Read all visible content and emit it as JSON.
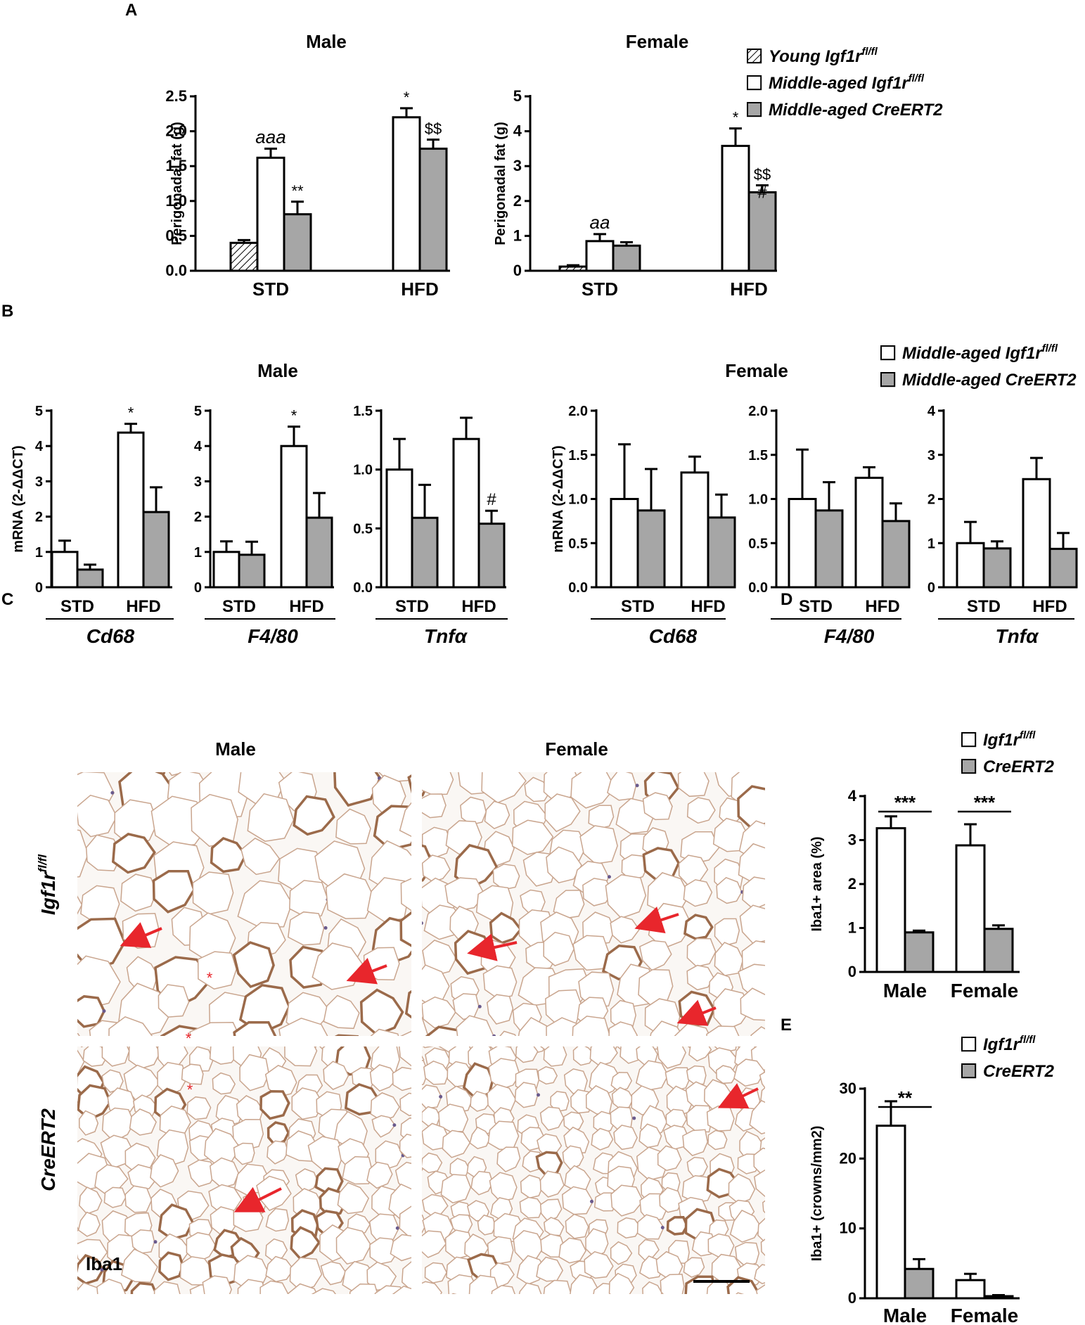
{
  "panel_labels": {
    "a": "A",
    "b": "B",
    "c": "C",
    "d": "D",
    "e": "E"
  },
  "colors": {
    "white_bar": "#ffffff",
    "gray_bar": "#a6a6a6",
    "arrow": "#e8262c",
    "adipose_bg": "#faf7f4",
    "adipose_membrane": "#c9a58e"
  },
  "legend_A": {
    "items": [
      {
        "label": "Young Igf1r",
        "sup": "fl/fl",
        "pattern": "hatch"
      },
      {
        "label": "Middle-aged Igf1r",
        "sup": "fl/fl",
        "pattern": "white"
      },
      {
        "label": "Middle-aged CreERT2",
        "sup": "",
        "pattern": "gray"
      }
    ]
  },
  "legend_B": {
    "items": [
      {
        "label": "Middle-aged Igf1r",
        "sup": "fl/fl",
        "pattern": "white"
      },
      {
        "label": "Middle-aged CreERT2",
        "sup": "",
        "pattern": "gray"
      }
    ]
  },
  "legend_D": {
    "items": [
      {
        "label": "Igf1r",
        "sup": "fl/fl",
        "pattern": "white"
      },
      {
        "label": "CreERT2",
        "sup": "",
        "pattern": "gray"
      }
    ]
  },
  "legend_E": {
    "items": [
      {
        "label": "Igf1r",
        "sup": "fl/fl",
        "pattern": "white"
      },
      {
        "label": "CreERT2",
        "sup": "",
        "pattern": "gray"
      }
    ]
  },
  "panel_C": {
    "col_titles": [
      "Male",
      "Female"
    ],
    "row_labels": [
      {
        "text": "Igf1r",
        "sup": "fl/fl"
      },
      {
        "text": "CreERT2",
        "sup": ""
      }
    ],
    "stain_label": "Iba1"
  },
  "chart_data": [
    {
      "id": "A_male",
      "type": "bar",
      "title": "Male",
      "ylabel": "Perigonadal fat (g)",
      "ylim": [
        0,
        2.5
      ],
      "yticks": [
        "0.0",
        "0.5",
        "1.0",
        "1.5",
        "2.0",
        "2.5"
      ],
      "categories": [
        "STD",
        "HFD"
      ],
      "series": [
        {
          "name": "Young Igf1r fl/fl",
          "values": [
            0.4,
            null
          ],
          "errors": [
            0.04,
            null
          ]
        },
        {
          "name": "Middle-aged Igf1r fl/fl",
          "values": [
            1.62,
            2.2
          ],
          "errors": [
            0.13,
            0.13
          ]
        },
        {
          "name": "Middle-aged CreERT2",
          "values": [
            0.81,
            1.75
          ],
          "errors": [
            0.18,
            0.13
          ]
        }
      ],
      "annotations": [
        {
          "series": 1,
          "cat": 0,
          "text": "aaa",
          "italic": true
        },
        {
          "series": 2,
          "cat": 0,
          "text": "**"
        },
        {
          "series": 1,
          "cat": 1,
          "text": "*"
        },
        {
          "series": 2,
          "cat": 1,
          "text": "$$"
        }
      ]
    },
    {
      "id": "A_female",
      "type": "bar",
      "title": "Female",
      "ylabel": "Perigonadal fat (g)",
      "ylim": [
        0,
        5
      ],
      "yticks": [
        "0",
        "1",
        "2",
        "3",
        "4",
        "5"
      ],
      "categories": [
        "STD",
        "HFD"
      ],
      "series": [
        {
          "name": "Young Igf1r fl/fl",
          "values": [
            0.12,
            null
          ],
          "errors": [
            0.04,
            null
          ]
        },
        {
          "name": "Middle-aged Igf1r fl/fl",
          "values": [
            0.85,
            3.58
          ],
          "errors": [
            0.2,
            0.5
          ]
        },
        {
          "name": "Middle-aged CreERT2",
          "values": [
            0.72,
            2.25
          ],
          "errors": [
            0.1,
            0.2
          ]
        }
      ],
      "annotations": [
        {
          "series": 1,
          "cat": 0,
          "text": "aa",
          "italic": true
        },
        {
          "series": 1,
          "cat": 1,
          "text": "*"
        },
        {
          "series": 2,
          "cat": 1,
          "text": "$$"
        },
        {
          "series": 2,
          "cat": 1,
          "text": "#"
        }
      ]
    },
    {
      "id": "B_m_cd68",
      "type": "bar",
      "group": "Male",
      "gene": "Cd68",
      "ylabel": "mRNA  (2-ΔΔCT)",
      "ylim": [
        0,
        5
      ],
      "yticks": [
        "0",
        "1",
        "2",
        "3",
        "4",
        "5"
      ],
      "categories": [
        "STD",
        "HFD"
      ],
      "series": [
        {
          "name": "Middle-aged Igf1r fl/fl",
          "values": [
            1.0,
            4.38
          ],
          "errors": [
            0.32,
            0.25
          ]
        },
        {
          "name": "Middle-aged CreERT2",
          "values": [
            0.5,
            2.13
          ],
          "errors": [
            0.14,
            0.7
          ]
        }
      ],
      "annotations": [
        {
          "series": 0,
          "cat": 1,
          "text": "*"
        }
      ]
    },
    {
      "id": "B_m_f480",
      "type": "bar",
      "group": "Male",
      "gene": "F4/80",
      "ylim": [
        0,
        5
      ],
      "yticks": [
        "0",
        "1",
        "2",
        "3",
        "4",
        "5"
      ],
      "categories": [
        "STD",
        "HFD"
      ],
      "series": [
        {
          "name": "Middle-aged Igf1r fl/fl",
          "values": [
            1.0,
            4.0
          ],
          "errors": [
            0.3,
            0.55
          ]
        },
        {
          "name": "Middle-aged CreERT2",
          "values": [
            0.92,
            1.97
          ],
          "errors": [
            0.37,
            0.7
          ]
        }
      ],
      "annotations": [
        {
          "series": 0,
          "cat": 1,
          "text": "*"
        }
      ]
    },
    {
      "id": "B_m_tnf",
      "type": "bar",
      "group": "Male",
      "gene": "Tnfα",
      "ylim": [
        0,
        1.5
      ],
      "yticks": [
        "0.0",
        "0.5",
        "1.0",
        "1.5"
      ],
      "categories": [
        "STD",
        "HFD"
      ],
      "series": [
        {
          "name": "Middle-aged Igf1r fl/fl",
          "values": [
            1.0,
            1.26
          ],
          "errors": [
            0.26,
            0.18
          ]
        },
        {
          "name": "Middle-aged CreERT2",
          "values": [
            0.59,
            0.54
          ],
          "errors": [
            0.28,
            0.11
          ]
        }
      ],
      "annotations": [
        {
          "series": 1,
          "cat": 1,
          "text": "#"
        }
      ]
    },
    {
      "id": "B_f_cd68",
      "type": "bar",
      "group": "Female",
      "gene": "Cd68",
      "ylabel": "mRNA  (2-ΔΔCT)",
      "ylim": [
        0,
        2.0
      ],
      "yticks": [
        "0.0",
        "0.5",
        "1.0",
        "1.5",
        "2.0"
      ],
      "categories": [
        "STD",
        "HFD"
      ],
      "series": [
        {
          "name": "Middle-aged Igf1r fl/fl",
          "values": [
            1.0,
            1.3
          ],
          "errors": [
            0.62,
            0.18
          ]
        },
        {
          "name": "Middle-aged CreERT2",
          "values": [
            0.87,
            0.79
          ],
          "errors": [
            0.47,
            0.26
          ]
        }
      ],
      "annotations": []
    },
    {
      "id": "B_f_f480",
      "type": "bar",
      "group": "Female",
      "gene": "F4/80",
      "ylim": [
        0,
        2.0
      ],
      "yticks": [
        "0.0",
        "0.5",
        "1.0",
        "1.5",
        "2.0"
      ],
      "categories": [
        "STD",
        "HFD"
      ],
      "series": [
        {
          "name": "Middle-aged Igf1r fl/fl",
          "values": [
            1.0,
            1.24
          ],
          "errors": [
            0.56,
            0.12
          ]
        },
        {
          "name": "Middle-aged CreERT2",
          "values": [
            0.87,
            0.75
          ],
          "errors": [
            0.32,
            0.2
          ]
        }
      ],
      "annotations": []
    },
    {
      "id": "B_f_tnf",
      "type": "bar",
      "group": "Female",
      "gene": "Tnfα",
      "ylim": [
        0,
        4
      ],
      "yticks": [
        "0",
        "1",
        "2",
        "3",
        "4"
      ],
      "categories": [
        "STD",
        "HFD"
      ],
      "series": [
        {
          "name": "Middle-aged Igf1r fl/fl",
          "values": [
            1.0,
            2.45
          ],
          "errors": [
            0.48,
            0.48
          ]
        },
        {
          "name": "Middle-aged CreERT2",
          "values": [
            0.88,
            0.87
          ],
          "errors": [
            0.16,
            0.36
          ]
        }
      ],
      "annotations": []
    },
    {
      "id": "D",
      "type": "bar",
      "ylabel": "Iba1+ area (%)",
      "ylim": [
        0,
        4
      ],
      "yticks": [
        "0",
        "1",
        "2",
        "3",
        "4"
      ],
      "categories": [
        "Male",
        "Female"
      ],
      "series": [
        {
          "name": "Igf1r fl/fl",
          "values": [
            3.27,
            2.88
          ],
          "errors": [
            0.27,
            0.48
          ]
        },
        {
          "name": "CreERT2",
          "values": [
            0.9,
            0.98
          ],
          "errors": [
            0.04,
            0.08
          ]
        }
      ],
      "brackets": [
        {
          "cat": 0,
          "text": "***"
        },
        {
          "cat": 1,
          "text": "***"
        }
      ]
    },
    {
      "id": "E",
      "type": "bar",
      "ylabel": "Iba1+ (crowns/mm2)",
      "ylim": [
        0,
        30
      ],
      "yticks": [
        "0",
        "10",
        "20",
        "30"
      ],
      "categories": [
        "Male",
        "Female"
      ],
      "series": [
        {
          "name": "Igf1r fl/fl",
          "values": [
            24.7,
            2.6
          ],
          "errors": [
            3.5,
            0.9
          ]
        },
        {
          "name": "CreERT2",
          "values": [
            4.2,
            0.3
          ],
          "errors": [
            1.4,
            0.15
          ]
        }
      ],
      "brackets": [
        {
          "cat": 0,
          "text": "**"
        }
      ]
    }
  ]
}
